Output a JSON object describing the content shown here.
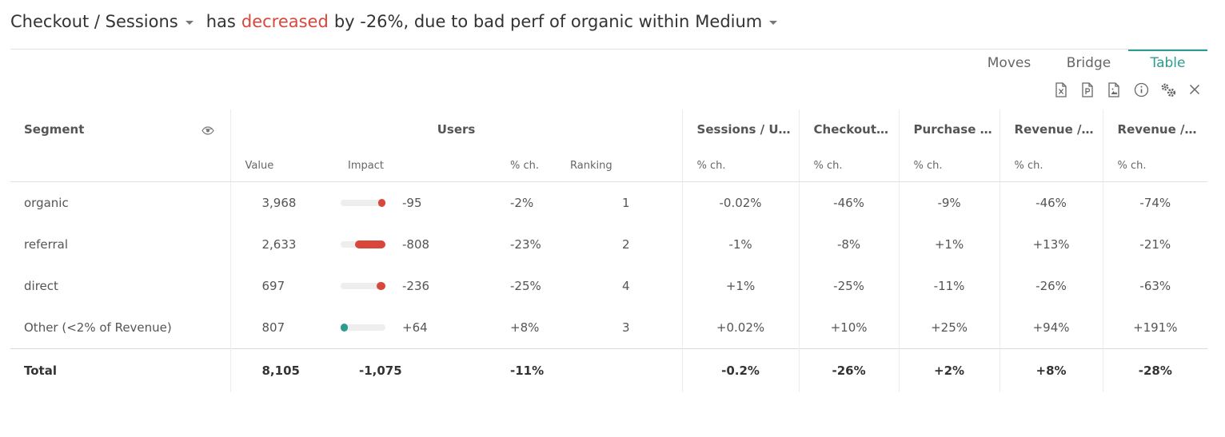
{
  "header": {
    "metric": "Checkout / Sessions",
    "has": "has",
    "trend_word": "decreased",
    "rest": "by -26%, due to bad perf of organic within",
    "dimension": "Medium"
  },
  "tabs": [
    {
      "label": "Moves",
      "active": false
    },
    {
      "label": "Bridge",
      "active": false
    },
    {
      "label": "Table",
      "active": true
    }
  ],
  "toolbar": {
    "icons": [
      "excel-export-icon",
      "powerpoint-export-icon",
      "image-export-icon",
      "info-icon",
      "settings-gears-icon",
      "close-icon"
    ]
  },
  "colors": {
    "negative": "#d9473b",
    "positive": "#2a9d8f",
    "accent": "#2a9d8f",
    "bar_track": "#eeeeee"
  },
  "table": {
    "segment_header": "Segment",
    "users_group": "Users",
    "metric_headers": [
      "Sessions / U…",
      "Checkout…",
      "Purchase …",
      "Revenue /…",
      "Revenue /…"
    ],
    "sub_headers": {
      "value": "Value",
      "impact": "Impact",
      "pct": "% ch.",
      "ranking": "Ranking"
    },
    "rows": [
      {
        "segment": "organic",
        "value": "3,968",
        "impact": "-95",
        "impact_level": 0.11,
        "pct": "-2%",
        "ranking": "1",
        "metrics": [
          "-0.02%",
          "-46%",
          "-9%",
          "-46%",
          "-74%"
        ]
      },
      {
        "segment": "referral",
        "value": "2,633",
        "impact": "-808",
        "impact_level": 1.0,
        "pct": "-23%",
        "ranking": "2",
        "metrics": [
          "-1%",
          "-8%",
          "+1%",
          "+13%",
          "-21%"
        ]
      },
      {
        "segment": "direct",
        "value": "697",
        "impact": "-236",
        "impact_level": 0.29,
        "pct": "-25%",
        "ranking": "4",
        "metrics": [
          "+1%",
          "-25%",
          "-11%",
          "-26%",
          "-63%"
        ]
      },
      {
        "segment": "Other (<2% of Revenue)",
        "value": "807",
        "impact": "+64",
        "impact_level": 0.08,
        "pct": "+8%",
        "ranking": "3",
        "metrics": [
          "+0.02%",
          "+10%",
          "+25%",
          "+94%",
          "+191%"
        ]
      }
    ],
    "total": {
      "label": "Total",
      "value": "8,105",
      "impact": "-1,075",
      "pct": "-11%",
      "metrics": [
        "-0.2%",
        "-26%",
        "+2%",
        "+8%",
        "-28%"
      ]
    }
  }
}
